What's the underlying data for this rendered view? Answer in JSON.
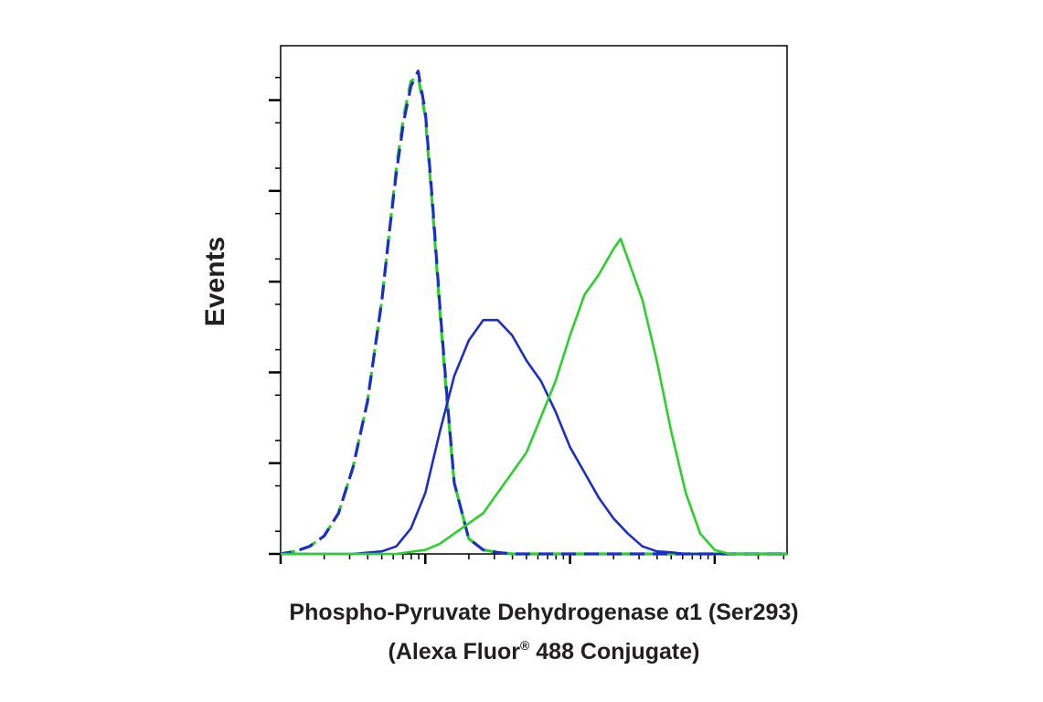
{
  "chart_data": {
    "type": "line",
    "title": "",
    "ylabel": "Events",
    "xlabel_line1": "Phospho-Pyruvate Dehydrogenase α1 (Ser293)",
    "xlabel_line2_prefix": "(Alexa Fluor",
    "xlabel_line2_reg": "®",
    "xlabel_line2_suffix": " 488 Conjugate)",
    "xscale": "log",
    "xlim_decades": [
      0,
      3.5
    ],
    "ylim": [
      0,
      1
    ],
    "grid": false,
    "legend": "none",
    "series": [
      {
        "line_style": "dashed",
        "color": "#2bd02b",
        "x": [
          0.0,
          0.1,
          0.2,
          0.3,
          0.4,
          0.5,
          0.6,
          0.7,
          0.75,
          0.8,
          0.85,
          0.9,
          0.95,
          1.0,
          1.05,
          1.1,
          1.15,
          1.2,
          1.3,
          1.4,
          1.5,
          1.6,
          1.7,
          1.8,
          1.9,
          2.0,
          2.5,
          3.0,
          3.5
        ],
        "y": [
          0.0,
          0.005,
          0.015,
          0.035,
          0.08,
          0.17,
          0.3,
          0.5,
          0.63,
          0.76,
          0.86,
          0.93,
          0.94,
          0.86,
          0.68,
          0.48,
          0.3,
          0.14,
          0.03,
          0.008,
          0.003,
          0.0,
          0.0,
          0.0,
          0.0,
          0.0,
          0.0,
          0.0,
          0.0
        ]
      },
      {
        "line_style": "dashed",
        "color": "#1c2ec8",
        "x": [
          0.0,
          0.1,
          0.2,
          0.3,
          0.4,
          0.5,
          0.6,
          0.7,
          0.75,
          0.8,
          0.85,
          0.9,
          0.95,
          1.0,
          1.05,
          1.1,
          1.15,
          1.2,
          1.3,
          1.4,
          1.5,
          1.6,
          1.7,
          1.8,
          1.9,
          2.0,
          2.5,
          3.0,
          3.5
        ],
        "y": [
          0.0,
          0.005,
          0.015,
          0.035,
          0.08,
          0.17,
          0.3,
          0.5,
          0.63,
          0.75,
          0.85,
          0.92,
          0.95,
          0.87,
          0.69,
          0.49,
          0.31,
          0.14,
          0.03,
          0.008,
          0.003,
          0.0,
          0.0,
          0.0,
          0.0,
          0.0,
          0.0,
          0.0,
          0.0
        ]
      },
      {
        "line_style": "solid",
        "color": "#1c2ec8",
        "x": [
          0.0,
          0.5,
          0.7,
          0.8,
          0.9,
          1.0,
          1.1,
          1.2,
          1.3,
          1.4,
          1.5,
          1.6,
          1.7,
          1.8,
          1.9,
          2.0,
          2.1,
          2.2,
          2.3,
          2.4,
          2.5,
          2.6,
          2.7,
          2.8,
          2.9,
          3.0,
          3.5
        ],
        "y": [
          0.0,
          0.0,
          0.005,
          0.015,
          0.05,
          0.12,
          0.24,
          0.35,
          0.42,
          0.46,
          0.46,
          0.43,
          0.38,
          0.34,
          0.28,
          0.21,
          0.16,
          0.11,
          0.07,
          0.04,
          0.015,
          0.005,
          0.003,
          0.0,
          0.0,
          0.0,
          0.0
        ]
      },
      {
        "line_style": "solid",
        "color": "#2bd02b",
        "x": [
          0.0,
          0.8,
          1.0,
          1.1,
          1.2,
          1.3,
          1.4,
          1.5,
          1.6,
          1.7,
          1.8,
          1.9,
          2.0,
          2.1,
          2.2,
          2.3,
          2.35,
          2.4,
          2.5,
          2.6,
          2.7,
          2.8,
          2.9,
          3.0,
          3.1,
          3.2,
          3.5
        ],
        "y": [
          0.0,
          0.0,
          0.008,
          0.02,
          0.04,
          0.06,
          0.08,
          0.12,
          0.16,
          0.2,
          0.27,
          0.34,
          0.43,
          0.51,
          0.55,
          0.6,
          0.62,
          0.58,
          0.5,
          0.38,
          0.24,
          0.12,
          0.04,
          0.008,
          0.0,
          0.0,
          0.0
        ]
      }
    ]
  }
}
